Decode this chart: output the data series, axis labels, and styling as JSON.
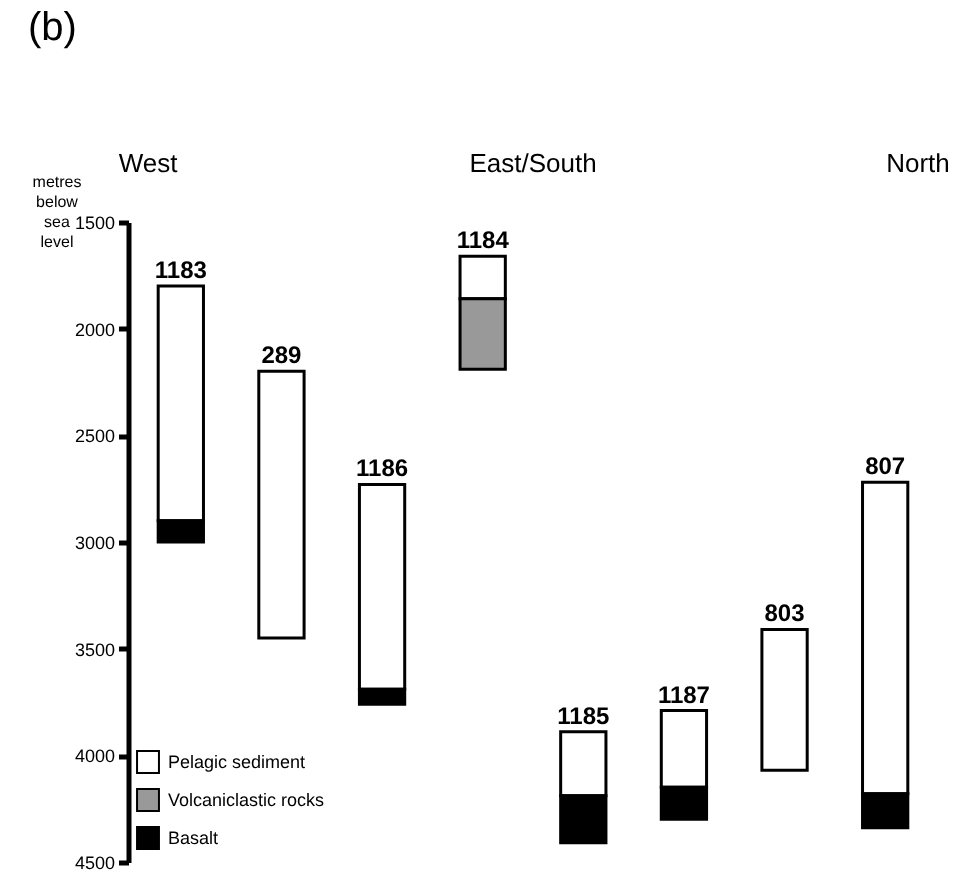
{
  "chart_data": {
    "type": "bar",
    "title": "(b)",
    "ylabel": "metres below sea level",
    "categories": [
      "1183",
      "289",
      "1186",
      "1184",
      "1185",
      "1187",
      "803",
      "807"
    ],
    "series": [
      {
        "name": "Pelagic sediment",
        "color": "#ffffff",
        "base": [
          1800,
          2200,
          2730,
          1660,
          3890,
          3790,
          3410,
          2720
        ],
        "values": [
          1100,
          1250,
          960,
          200,
          300,
          360,
          660,
          1460
        ]
      },
      {
        "name": "Volcaniclastic rocks",
        "color": "#999999",
        "base": [
          null,
          null,
          null,
          1860,
          null,
          null,
          null,
          null
        ],
        "values": [
          null,
          null,
          null,
          330,
          null,
          null,
          null,
          null
        ]
      },
      {
        "name": "Basalt",
        "color": "#000000",
        "base": [
          2900,
          null,
          3690,
          null,
          4190,
          4150,
          null,
          4180
        ],
        "values": [
          100,
          null,
          70,
          null,
          220,
          150,
          null,
          160
        ]
      }
    ],
    "ylim": [
      4500,
      1500
    ],
    "yticks": [
      1500,
      2000,
      2500,
      3000,
      3500,
      4000,
      4500
    ],
    "annotations": [
      "West",
      "East/South",
      "North"
    ],
    "grid": false,
    "legend": "bottom left"
  }
}
